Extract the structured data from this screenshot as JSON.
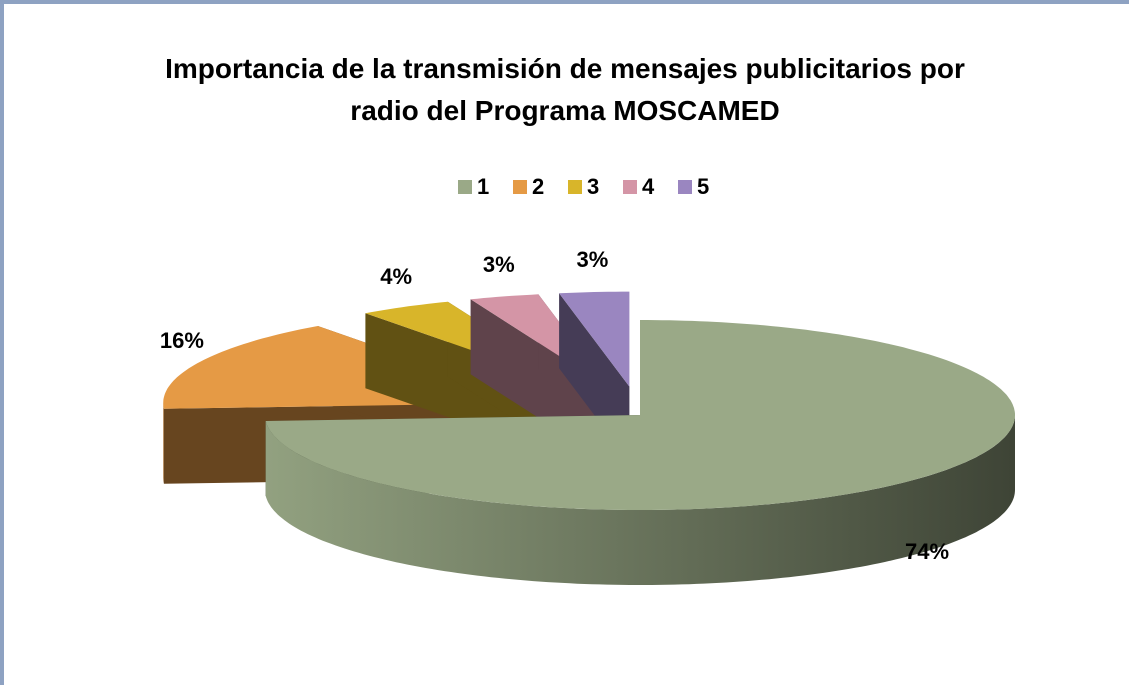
{
  "chart_data": {
    "type": "pie3d",
    "title": "Importancia de la transmisión de mensajes publicitarios por radio del Programa MOSCAMED",
    "categories": [
      "1",
      "2",
      "3",
      "4",
      "5"
    ],
    "values": [
      74,
      16,
      4,
      3,
      3
    ],
    "value_labels": [
      "74%",
      "16%",
      "4%",
      "3%",
      "3%"
    ],
    "colors": [
      "#9aa987",
      "#e59a45",
      "#d8b52a",
      "#d495a6",
      "#9a86c0"
    ],
    "legend": "top"
  }
}
